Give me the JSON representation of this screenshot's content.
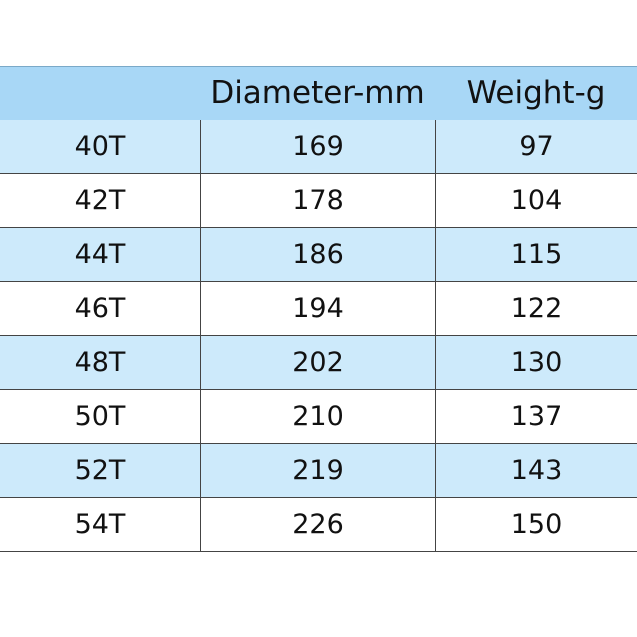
{
  "table": {
    "header": [
      "Diameter-mm",
      "Weight-g"
    ],
    "rows": [
      [
        "40T",
        169,
        97
      ],
      [
        "42T",
        178,
        104
      ],
      [
        "44T",
        186,
        115
      ],
      [
        "46T",
        194,
        122
      ],
      [
        "48T",
        202,
        130
      ],
      [
        "50T",
        210,
        137
      ],
      [
        "52T",
        219,
        143
      ],
      [
        "54T",
        226,
        150
      ]
    ]
  }
}
